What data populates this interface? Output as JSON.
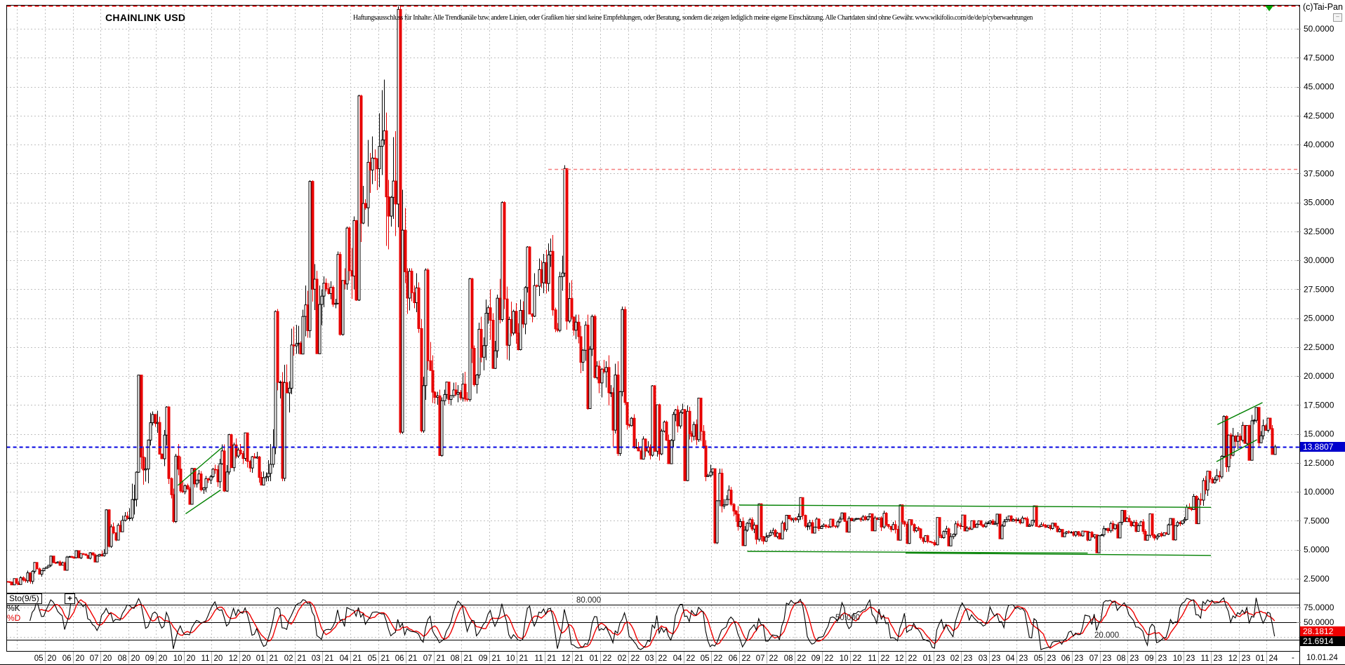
{
  "header": {
    "title": "CHAINLINK USD",
    "disclaimer": "Haftungsausschluss für Inhalte: Alle Trendkanäle bzw. andere Linien, oder Grafiken hier sind keine Empfehlungen, oder Beratung, sondern die zeigen lediglich meine eigene Einschätzung. Alle Chartdaten sind ohne Gewähr. www.wikifolio.com/de/de/p/cyberwaehrungen",
    "copyright": "(c)Tai-Pan",
    "minimize_icon": "–"
  },
  "price_axis": {
    "labels": [
      "50.0000",
      "47.5000",
      "45.0000",
      "42.5000",
      "40.0000",
      "37.5000",
      "35.0000",
      "32.5000",
      "30.0000",
      "27.5000",
      "25.0000",
      "22.5000",
      "20.0000",
      "17.5000",
      "15.0000",
      "12.5000",
      "10.0000",
      "7.5000",
      "5.0000",
      "2.5000"
    ],
    "last_price": "13.8807",
    "last_price_bg": "#0000cc"
  },
  "time_axis": {
    "month_labels": [
      "05 20",
      "06 20",
      "07 20",
      "08 20",
      "09 20",
      "10 20",
      "11 20",
      "12 20",
      "01 21",
      "02 21",
      "03 21",
      "04 21",
      "05 21",
      "06 21",
      "07 21",
      "08 21",
      "09 21",
      "10 21",
      "11 21",
      "12 21",
      "01 22",
      "02 22",
      "03 22",
      "04 22",
      "05 22",
      "06 22",
      "07 22",
      "08 22",
      "09 22",
      "10 22",
      "11 22",
      "12 22",
      "01 23",
      "02 23",
      "03 23",
      "04 23",
      "05 23",
      "06 23",
      "07 23",
      "08 23",
      "09 23",
      "10 23",
      "11 23",
      "12 23",
      "01 24"
    ],
    "end_dash": "-",
    "last_date": "10.01.24"
  },
  "indicator": {
    "name": "Sto(9/5)",
    "expand_icon": "+",
    "series_k": "%K",
    "series_d": "%D",
    "k_value": "21.6914",
    "d_value": "28.1812",
    "axis_labels": [
      "75.0000",
      "50.0000"
    ],
    "level_labels": [
      "80.000",
      "50.000",
      "20.000"
    ]
  },
  "colors": {
    "up_body": "#ffffff",
    "up_stroke": "#000000",
    "down": "#e80000",
    "grid": "#c0c0c0",
    "frame": "#000000",
    "blue_line": "#0000e0",
    "red_line": "#ff0000",
    "salmon_line": "#f57f7f",
    "green": "#008000",
    "k_line": "#000000",
    "d_line": "#ee0000"
  },
  "chart_data": {
    "type": "candlestick",
    "title": "CHAINLINK USD",
    "x_range": [
      "2020-03-20",
      "2024-01-10"
    ],
    "ylim": [
      0,
      52.5
    ],
    "y_step": 2.5,
    "grid": true,
    "note": "monthly OHLC anchors read from the chart; bars rendered by deterministic interpolation of these anchors",
    "monthly": [
      [
        "2020-03",
        2.25,
        2.5,
        1.95,
        2.1
      ],
      [
        "2020-04",
        2.1,
        3.9,
        1.96,
        3.38
      ],
      [
        "2020-05",
        3.38,
        4.45,
        3.2,
        4.32
      ],
      [
        "2020-06",
        4.32,
        4.92,
        3.92,
        4.58
      ],
      [
        "2020-07",
        4.58,
        8.48,
        4.4,
        7.72
      ],
      [
        "2020-08",
        7.72,
        20.1,
        7.5,
        15.9
      ],
      [
        "2020-09",
        15.9,
        17.4,
        7.3,
        10.0
      ],
      [
        "2020-10",
        10.0,
        12.05,
        8.9,
        11.3
      ],
      [
        "2020-11",
        11.3,
        15.0,
        10.0,
        13.6
      ],
      [
        "2020-12",
        13.6,
        15.1,
        10.55,
        11.3
      ],
      [
        "2021-01",
        11.3,
        25.8,
        10.9,
        22.6
      ],
      [
        "2021-02",
        22.6,
        36.9,
        21.9,
        26.9
      ],
      [
        "2021-03",
        26.9,
        32.9,
        23.5,
        29.1
      ],
      [
        "2021-04",
        29.1,
        44.3,
        26.5,
        37.9
      ],
      [
        "2021-05",
        37.9,
        52.3,
        15.0,
        29.0
      ],
      [
        "2021-06",
        29.0,
        29.3,
        15.1,
        18.6
      ],
      [
        "2021-07",
        18.6,
        19.5,
        13.0,
        18.1
      ],
      [
        "2021-08",
        18.1,
        28.5,
        17.8,
        25.9
      ],
      [
        "2021-09",
        25.9,
        35.1,
        20.6,
        23.7
      ],
      [
        "2021-10",
        23.7,
        31.2,
        22.2,
        29.8
      ],
      [
        "2021-11",
        29.8,
        38.2,
        23.8,
        25.1
      ],
      [
        "2021-12",
        25.1,
        25.3,
        17.1,
        19.4
      ],
      [
        "2022-01",
        19.4,
        26.0,
        13.1,
        15.8
      ],
      [
        "2022-02",
        15.8,
        19.2,
        12.8,
        13.5
      ],
      [
        "2022-03",
        13.5,
        17.6,
        12.4,
        17.1
      ],
      [
        "2022-04",
        17.1,
        18.1,
        10.9,
        11.7
      ],
      [
        "2022-05",
        11.7,
        12.0,
        5.5,
        7.0
      ],
      [
        "2022-06",
        7.0,
        9.0,
        5.3,
        6.1
      ],
      [
        "2022-07",
        6.1,
        8.0,
        5.9,
        7.7
      ],
      [
        "2022-08",
        7.7,
        9.5,
        6.4,
        7.0
      ],
      [
        "2022-09",
        7.0,
        8.2,
        6.5,
        7.7
      ],
      [
        "2022-10",
        7.7,
        8.1,
        6.6,
        7.6
      ],
      [
        "2022-11",
        7.6,
        8.9,
        5.8,
        7.2
      ],
      [
        "2022-12",
        7.2,
        7.6,
        5.5,
        5.6
      ],
      [
        "2023-01",
        5.6,
        7.8,
        5.3,
        7.0
      ],
      [
        "2023-02",
        7.0,
        8.0,
        6.6,
        7.3
      ],
      [
        "2023-03",
        7.3,
        8.1,
        5.9,
        7.5
      ],
      [
        "2023-04",
        7.5,
        8.8,
        7.0,
        7.1
      ],
      [
        "2023-05",
        7.1,
        7.3,
        6.1,
        6.5
      ],
      [
        "2023-06",
        6.5,
        6.6,
        4.7,
        6.2
      ],
      [
        "2023-07",
        6.2,
        8.4,
        6.0,
        7.7
      ],
      [
        "2023-08",
        7.7,
        8.1,
        5.8,
        6.0
      ],
      [
        "2023-09",
        6.0,
        7.7,
        5.8,
        7.5
      ],
      [
        "2023-10",
        7.5,
        11.8,
        7.2,
        11.1
      ],
      [
        "2023-11",
        11.1,
        16.6,
        10.7,
        14.8
      ],
      [
        "2023-12",
        14.8,
        17.3,
        12.7,
        15.3
      ],
      [
        "2024-01",
        15.3,
        16.4,
        13.2,
        13.8807
      ]
    ],
    "last_close": 13.8807,
    "annotations": {
      "hlines": [
        {
          "name": "ath-line",
          "price": 52.0,
          "from": "2020-03-20",
          "to": "2024-01-10",
          "color": "#ff0000",
          "dash": "6 4",
          "width": 2
        },
        {
          "name": "resistance-38",
          "price": 37.9,
          "from": "2021-11-05",
          "to": "2024-01-10",
          "color": "#f57f7f",
          "dash": "5 4",
          "width": 1.5
        },
        {
          "name": "last-price-line",
          "price": 13.8807,
          "from": "2020-03-20",
          "to": "2024-01-10",
          "color": "#0000e0",
          "dash": "5 4",
          "width": 2
        }
      ],
      "trendlines": [
        {
          "name": "channel-2020-upper",
          "p1": [
            "2020-09-25",
            10.55
          ],
          "p2": [
            "2020-11-13",
            13.85
          ]
        },
        {
          "name": "channel-2020-lower",
          "p1": [
            "2020-10-03",
            8.1
          ],
          "p2": [
            "2020-11-11",
            10.15
          ]
        },
        {
          "name": "range-2022-23-upper",
          "p1": [
            "2022-06-01",
            8.85
          ],
          "p2": [
            "2023-11-01",
            8.65
          ]
        },
        {
          "name": "range-2022-23-lower-a",
          "p1": [
            "2022-06-10",
            4.85
          ],
          "p2": [
            "2023-06-18",
            4.7
          ]
        },
        {
          "name": "range-2022-23-lower-b",
          "p1": [
            "2022-12-01",
            4.7
          ],
          "p2": [
            "2023-11-01",
            4.5
          ]
        },
        {
          "name": "channel-2023-upper",
          "p1": [
            "2023-11-08",
            15.8
          ],
          "p2": [
            "2023-12-27",
            17.7
          ]
        },
        {
          "name": "channel-2023-lower",
          "p1": [
            "2023-11-07",
            12.6
          ],
          "p2": [
            "2023-12-21",
            14.5
          ]
        }
      ],
      "markers": [
        {
          "name": "top-marker",
          "date": "2024-01-04",
          "type": "triangle-down",
          "color": "#00a000"
        }
      ]
    },
    "stochastic": {
      "type": "line",
      "name": "Sto(9/5)",
      "range": [
        0,
        100
      ],
      "levels": [
        80,
        50,
        20
      ],
      "level_label_dates": [
        "2021-12-05",
        "2022-09-15",
        "2023-06-25"
      ],
      "series": [
        {
          "name": "%K",
          "color": "#000000",
          "last": 21.6914
        },
        {
          "name": "%D",
          "color": "#ee0000",
          "last": 28.1812
        }
      ]
    }
  }
}
